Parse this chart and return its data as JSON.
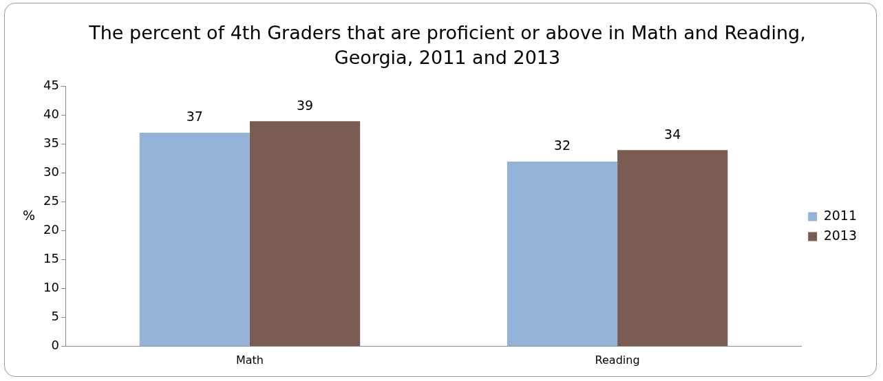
{
  "chart_data": {
    "type": "bar",
    "title": "The percent of 4th Graders that are proficient or above in Math and Reading, Georgia, 2011 and 2013",
    "ylabel": "%",
    "categories": [
      "Math",
      "Reading"
    ],
    "series": [
      {
        "name": "2011",
        "color": "#95b3d7",
        "values": [
          37,
          32
        ]
      },
      {
        "name": "2013",
        "color": "#7a5c52",
        "values": [
          39,
          34
        ]
      }
    ],
    "ylim": [
      0,
      45
    ],
    "yticks": [
      0,
      5,
      10,
      15,
      20,
      25,
      30,
      35,
      40,
      45
    ],
    "grid": false,
    "legend": "right",
    "data_labels": true
  }
}
